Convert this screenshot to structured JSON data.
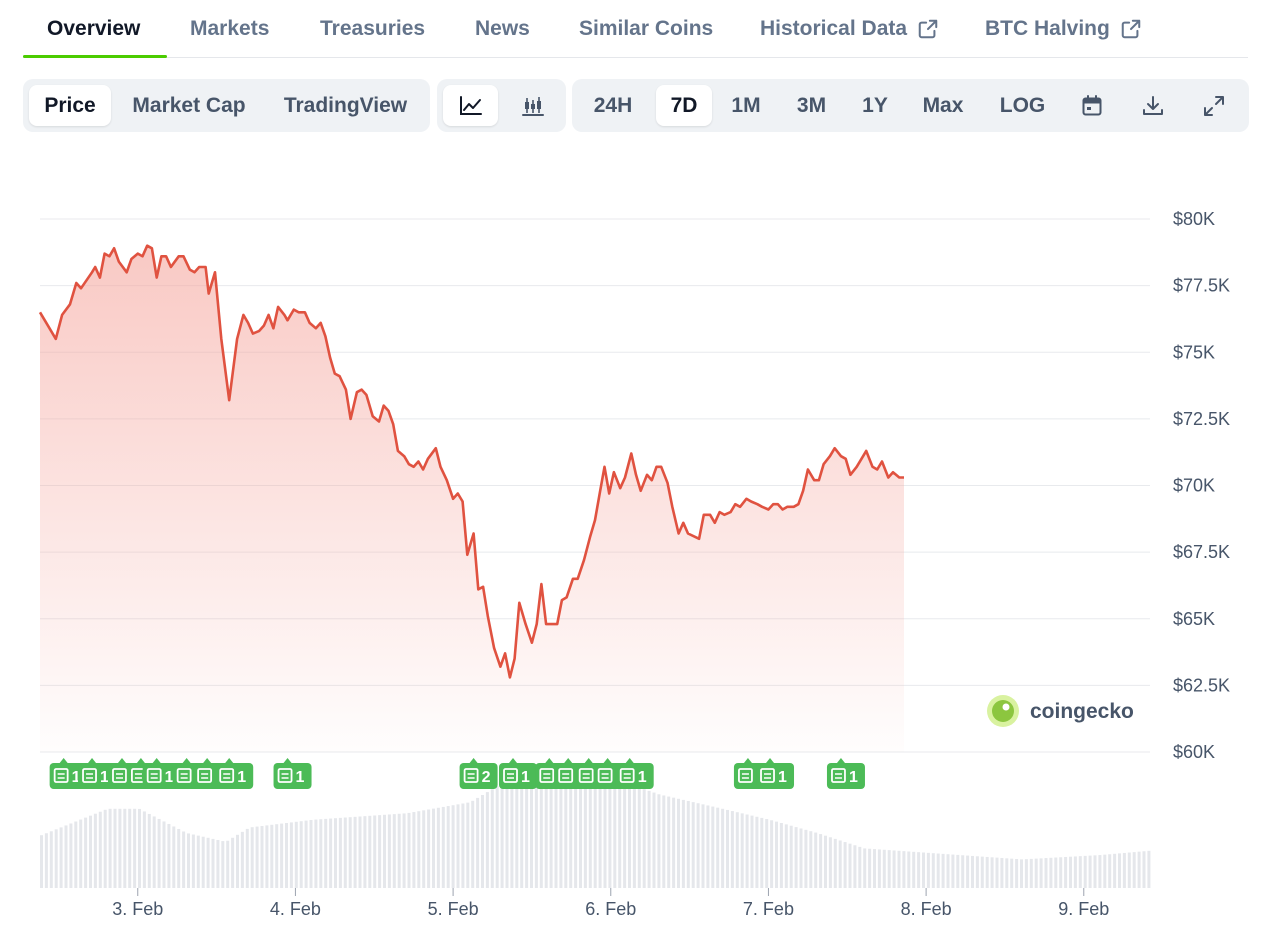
{
  "tabs": [
    {
      "label": "Overview",
      "active": true
    },
    {
      "label": "Markets"
    },
    {
      "label": "Treasuries"
    },
    {
      "label": "News"
    },
    {
      "label": "Similar Coins"
    },
    {
      "label": "Historical Data",
      "icon": "external-link-icon"
    },
    {
      "label": "BTC Halving",
      "icon": "external-link-icon"
    }
  ],
  "chart_type_options": [
    {
      "label": "Price",
      "active": true
    },
    {
      "label": "Market Cap"
    },
    {
      "label": "TradingView"
    }
  ],
  "style_buttons": [
    {
      "icon": "line-chart-icon",
      "active": true
    },
    {
      "icon": "candlestick-chart-icon"
    }
  ],
  "ranges": [
    {
      "label": "24H"
    },
    {
      "label": "7D",
      "active": true
    },
    {
      "label": "1M"
    },
    {
      "label": "3M"
    },
    {
      "label": "1Y"
    },
    {
      "label": "Max"
    },
    {
      "label": "LOG"
    }
  ],
  "tool_buttons": [
    {
      "icon": "calendar-icon"
    },
    {
      "icon": "download-icon"
    },
    {
      "icon": "fullscreen-icon"
    }
  ],
  "watermark": "coingecko",
  "colors": {
    "accent": "#4bcc00",
    "line": "#e05240",
    "area_top": "#f5a8a0",
    "news_badge": "#4cbb57",
    "volume": "#e5e7eb"
  },
  "chart_data": {
    "type": "area",
    "y_tick_labels": [
      "$60K",
      "$62.5K",
      "$65K",
      "$67.5K",
      "$70K",
      "$72.5K",
      "$75K",
      "$77.5K",
      "$80K"
    ],
    "x_tick_labels": [
      "3. Feb",
      "4. Feb",
      "5. Feb",
      "6. Feb",
      "7. Feb",
      "8. Feb",
      "9. Feb"
    ],
    "x_range": [
      2.38,
      9.42
    ],
    "ylim": [
      60000,
      80000
    ],
    "grid": true,
    "series": [
      {
        "values": [
          [
            2.38,
            76500
          ],
          [
            2.43,
            76000
          ],
          [
            2.48,
            75500
          ],
          [
            2.52,
            76400
          ],
          [
            2.57,
            76800
          ],
          [
            2.61,
            77600
          ],
          [
            2.64,
            77400
          ],
          [
            2.71,
            78000
          ],
          [
            2.73,
            78200
          ],
          [
            2.76,
            77800
          ],
          [
            2.79,
            78700
          ],
          [
            2.82,
            78600
          ],
          [
            2.85,
            78900
          ],
          [
            2.88,
            78400
          ],
          [
            2.93,
            78000
          ],
          [
            2.96,
            78500
          ],
          [
            3.0,
            78700
          ],
          [
            3.03,
            78600
          ],
          [
            3.06,
            79000
          ],
          [
            3.09,
            78900
          ],
          [
            3.12,
            77800
          ],
          [
            3.15,
            78600
          ],
          [
            3.18,
            78600
          ],
          [
            3.21,
            78200
          ],
          [
            3.26,
            78600
          ],
          [
            3.29,
            78600
          ],
          [
            3.33,
            78100
          ],
          [
            3.36,
            78000
          ],
          [
            3.39,
            78200
          ],
          [
            3.43,
            78200
          ],
          [
            3.45,
            77200
          ],
          [
            3.49,
            78000
          ],
          [
            3.53,
            75500
          ],
          [
            3.58,
            73200
          ],
          [
            3.63,
            75500
          ],
          [
            3.67,
            76400
          ],
          [
            3.7,
            76100
          ],
          [
            3.73,
            75700
          ],
          [
            3.77,
            75800
          ],
          [
            3.8,
            76000
          ],
          [
            3.83,
            76400
          ],
          [
            3.86,
            75900
          ],
          [
            3.89,
            76700
          ],
          [
            3.93,
            76400
          ],
          [
            3.95,
            76200
          ],
          [
            3.99,
            76600
          ],
          [
            4.02,
            76500
          ],
          [
            4.06,
            76500
          ],
          [
            4.09,
            76100
          ],
          [
            4.13,
            75900
          ],
          [
            4.16,
            76100
          ],
          [
            4.19,
            75600
          ],
          [
            4.22,
            74800
          ],
          [
            4.25,
            74200
          ],
          [
            4.28,
            74100
          ],
          [
            4.32,
            73600
          ],
          [
            4.35,
            72500
          ],
          [
            4.39,
            73500
          ],
          [
            4.42,
            73600
          ],
          [
            4.45,
            73400
          ],
          [
            4.49,
            72600
          ],
          [
            4.53,
            72400
          ],
          [
            4.56,
            73000
          ],
          [
            4.59,
            72800
          ],
          [
            4.62,
            72300
          ],
          [
            4.65,
            71300
          ],
          [
            4.69,
            71100
          ],
          [
            4.72,
            70800
          ],
          [
            4.75,
            70700
          ],
          [
            4.78,
            70900
          ],
          [
            4.81,
            70600
          ],
          [
            4.84,
            71000
          ],
          [
            4.89,
            71400
          ],
          [
            4.92,
            70700
          ],
          [
            4.96,
            70200
          ],
          [
            5.0,
            69500
          ],
          [
            5.03,
            69700
          ],
          [
            5.06,
            69400
          ],
          [
            5.09,
            67400
          ],
          [
            5.13,
            68200
          ],
          [
            5.16,
            66100
          ],
          [
            5.19,
            66200
          ],
          [
            5.22,
            65100
          ],
          [
            5.26,
            63900
          ],
          [
            5.3,
            63200
          ],
          [
            5.33,
            63700
          ],
          [
            5.36,
            62800
          ],
          [
            5.39,
            63500
          ],
          [
            5.42,
            65600
          ],
          [
            5.46,
            64800
          ],
          [
            5.5,
            64100
          ],
          [
            5.53,
            64800
          ],
          [
            5.56,
            66300
          ],
          [
            5.59,
            64800
          ],
          [
            5.66,
            64800
          ],
          [
            5.69,
            65700
          ],
          [
            5.72,
            65800
          ],
          [
            5.76,
            66500
          ],
          [
            5.79,
            66500
          ],
          [
            5.83,
            67200
          ],
          [
            5.87,
            68100
          ],
          [
            5.9,
            68700
          ],
          [
            5.93,
            69700
          ],
          [
            5.96,
            70700
          ],
          [
            5.99,
            69700
          ],
          [
            6.02,
            70500
          ],
          [
            6.06,
            69900
          ],
          [
            6.09,
            70300
          ],
          [
            6.13,
            71200
          ],
          [
            6.16,
            70400
          ],
          [
            6.19,
            69800
          ],
          [
            6.23,
            70400
          ],
          [
            6.26,
            70200
          ],
          [
            6.29,
            70700
          ],
          [
            6.32,
            70700
          ],
          [
            6.36,
            70100
          ],
          [
            6.39,
            69200
          ],
          [
            6.43,
            68200
          ],
          [
            6.46,
            68600
          ],
          [
            6.49,
            68200
          ],
          [
            6.56,
            68000
          ],
          [
            6.59,
            68900
          ],
          [
            6.63,
            68900
          ],
          [
            6.66,
            68600
          ],
          [
            6.69,
            69000
          ],
          [
            6.72,
            68900
          ],
          [
            6.76,
            69000
          ],
          [
            6.79,
            69300
          ],
          [
            6.82,
            69200
          ],
          [
            6.86,
            69500
          ],
          [
            6.89,
            69400
          ],
          [
            6.93,
            69300
          ],
          [
            6.96,
            69200
          ],
          [
            7.0,
            69100
          ],
          [
            7.03,
            69300
          ],
          [
            7.06,
            69300
          ],
          [
            7.09,
            69100
          ],
          [
            7.12,
            69200
          ],
          [
            7.16,
            69200
          ],
          [
            7.19,
            69300
          ],
          [
            7.22,
            69800
          ],
          [
            7.25,
            70600
          ],
          [
            7.29,
            70200
          ],
          [
            7.32,
            70200
          ],
          [
            7.35,
            70800
          ],
          [
            7.39,
            71100
          ],
          [
            7.42,
            71400
          ],
          [
            7.46,
            71100
          ],
          [
            7.49,
            71000
          ],
          [
            7.52,
            70400
          ],
          [
            7.56,
            70700
          ],
          [
            7.59,
            71000
          ],
          [
            7.62,
            71300
          ],
          [
            7.66,
            70700
          ],
          [
            7.69,
            70600
          ],
          [
            7.72,
            70900
          ],
          [
            7.76,
            70300
          ],
          [
            7.79,
            70500
          ],
          [
            7.83,
            70300
          ],
          [
            7.86,
            70300
          ]
        ]
      }
    ],
    "news_badges": [
      {
        "x": 2.53,
        "label": "1"
      },
      {
        "x": 2.71,
        "label": "1"
      },
      {
        "x": 2.9,
        "label": "1"
      },
      {
        "x": 3.02,
        "label": "1"
      },
      {
        "x": 3.12,
        "label": "1"
      },
      {
        "x": 3.31,
        "label": "1"
      },
      {
        "x": 3.44,
        "label": "1"
      },
      {
        "x": 3.58,
        "label": "1"
      },
      {
        "x": 3.95,
        "label": "1"
      },
      {
        "x": 5.13,
        "label": "2"
      },
      {
        "x": 5.38,
        "label": "1"
      },
      {
        "x": 5.61,
        "label": "1"
      },
      {
        "x": 5.73,
        "label": "3"
      },
      {
        "x": 5.86,
        "label": "1"
      },
      {
        "x": 5.98,
        "label": "1"
      },
      {
        "x": 6.12,
        "label": "1"
      },
      {
        "x": 6.87,
        "label": "1"
      },
      {
        "x": 7.01,
        "label": "1"
      },
      {
        "x": 7.46,
        "label": "1"
      }
    ],
    "volume_profile": [
      [
        2.38,
        0.48
      ],
      [
        2.8,
        0.72
      ],
      [
        3.0,
        0.72
      ],
      [
        3.3,
        0.5
      ],
      [
        3.55,
        0.42
      ],
      [
        3.7,
        0.55
      ],
      [
        4.1,
        0.62
      ],
      [
        4.7,
        0.68
      ],
      [
        5.1,
        0.78
      ],
      [
        5.3,
        0.95
      ],
      [
        5.6,
        1.0
      ],
      [
        6.0,
        1.0
      ],
      [
        6.3,
        0.85
      ],
      [
        6.7,
        0.72
      ],
      [
        7.0,
        0.62
      ],
      [
        7.3,
        0.5
      ],
      [
        7.6,
        0.36
      ],
      [
        8.2,
        0.3
      ],
      [
        8.6,
        0.26
      ],
      [
        9.1,
        0.3
      ],
      [
        9.42,
        0.34
      ]
    ]
  }
}
